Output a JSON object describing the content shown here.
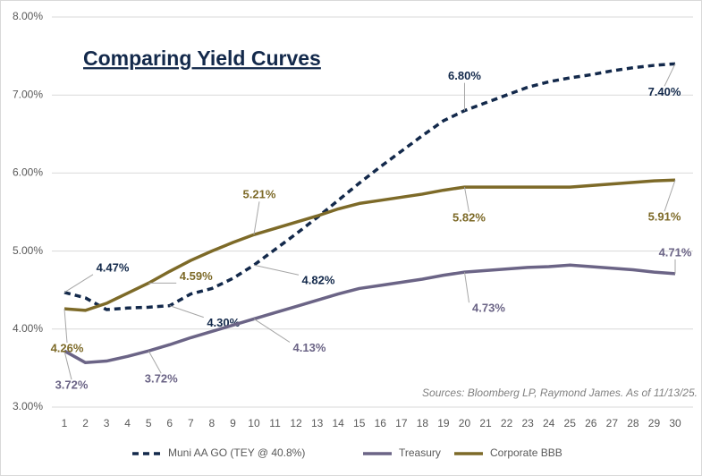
{
  "chart_data": {
    "type": "line",
    "title": "Comparing Yield Curves",
    "note": "Sources: Bloomberg LP, Raymond James. As of 11/13/25.",
    "categories": [
      1,
      2,
      3,
      4,
      5,
      6,
      7,
      8,
      9,
      10,
      11,
      12,
      13,
      14,
      15,
      16,
      17,
      18,
      19,
      20,
      21,
      22,
      23,
      24,
      25,
      26,
      27,
      28,
      29,
      30
    ],
    "ylim": [
      3,
      8
    ],
    "yticks": [
      {
        "value": 3,
        "label": "3.00%"
      },
      {
        "value": 4,
        "label": "4.00%"
      },
      {
        "value": 5,
        "label": "5.00%"
      },
      {
        "value": 6,
        "label": "6.00%"
      },
      {
        "value": 7,
        "label": "7.00%"
      },
      {
        "value": 8,
        "label": "8.00%"
      }
    ],
    "grid": true,
    "legend": "bottom",
    "series": [
      {
        "name": "Muni AA GO (TEY @ 40.8%)",
        "color": "#13294b",
        "dashed": true,
        "values": [
          4.47,
          4.4,
          4.25,
          4.27,
          4.28,
          4.3,
          4.45,
          4.52,
          4.65,
          4.82,
          5.02,
          5.22,
          5.43,
          5.65,
          5.87,
          6.08,
          6.28,
          6.48,
          6.67,
          6.8,
          6.9,
          7.0,
          7.1,
          7.17,
          7.22,
          7.26,
          7.31,
          7.35,
          7.38,
          7.4
        ],
        "value_labels": [
          "4.47%",
          null,
          null,
          null,
          null,
          "4.30%",
          null,
          null,
          null,
          "4.82%",
          null,
          null,
          null,
          null,
          null,
          null,
          null,
          null,
          null,
          "6.80%",
          null,
          null,
          null,
          null,
          null,
          null,
          null,
          null,
          null,
          "7.40%"
        ]
      },
      {
        "name": "Treasury",
        "color": "#6b6486",
        "dashed": false,
        "values": [
          3.72,
          3.57,
          3.59,
          3.65,
          3.72,
          3.8,
          3.89,
          3.97,
          4.05,
          4.13,
          4.21,
          4.29,
          4.37,
          4.45,
          4.52,
          4.56,
          4.6,
          4.64,
          4.69,
          4.73,
          4.75,
          4.77,
          4.79,
          4.8,
          4.82,
          4.8,
          4.78,
          4.76,
          4.73,
          4.71
        ],
        "value_labels": [
          "3.72%",
          null,
          null,
          null,
          "3.72%",
          null,
          null,
          null,
          null,
          "4.13%",
          null,
          null,
          null,
          null,
          null,
          null,
          null,
          null,
          null,
          "4.73%",
          null,
          null,
          null,
          null,
          null,
          null,
          null,
          null,
          null,
          "4.71%"
        ]
      },
      {
        "name": "Corporate BBB",
        "color": "#7d6a28",
        "dashed": false,
        "values": [
          4.26,
          4.24,
          4.33,
          4.46,
          4.59,
          4.74,
          4.88,
          5.0,
          5.11,
          5.21,
          5.29,
          5.37,
          5.45,
          5.54,
          5.61,
          5.65,
          5.69,
          5.73,
          5.78,
          5.82,
          5.82,
          5.82,
          5.82,
          5.82,
          5.82,
          5.84,
          5.86,
          5.88,
          5.9,
          5.91
        ],
        "value_labels": [
          "4.26%",
          null,
          null,
          null,
          "4.59%",
          null,
          null,
          null,
          null,
          "5.21%",
          null,
          null,
          null,
          null,
          null,
          null,
          null,
          null,
          null,
          "5.82%",
          null,
          null,
          null,
          null,
          null,
          null,
          null,
          null,
          null,
          "5.91%"
        ]
      }
    ]
  }
}
